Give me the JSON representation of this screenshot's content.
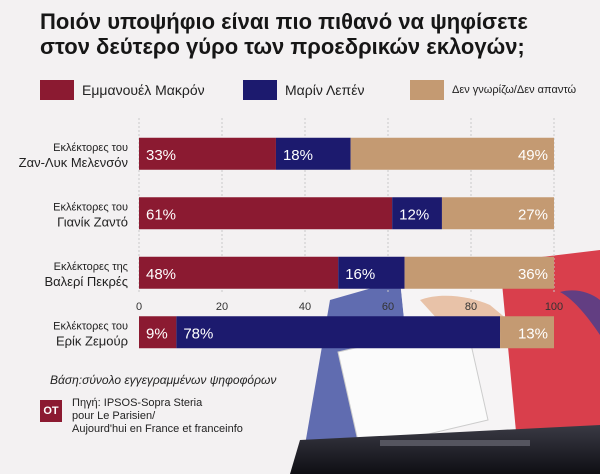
{
  "title_line1": "Ποιόν υποψήφιο είναι πιο πιθανό να ψηφίσετε",
  "title_line2": "στον δεύτερο γύρο των προεδρικών εκλογών;",
  "colors": {
    "macron": "#8b1a31",
    "lepen": "#1c1a6e",
    "dontknow": "#c49a72"
  },
  "chart_data": {
    "type": "bar",
    "orientation": "horizontal",
    "stacked": true,
    "categories": [
      [
        "Εκλέκτορες του",
        "Ζαν-Λυκ Μελενσόν"
      ],
      [
        "Εκλέκτορες του",
        "Γιανίκ Ζαντό"
      ],
      [
        "Εκλέκτορες της",
        "Βαλερί Πεκρές"
      ],
      [
        "Εκλέκτορες του",
        "Ερίκ Ζεμούρ"
      ]
    ],
    "series": [
      {
        "name": "Εμμανουέλ Μακρόν",
        "values": [
          33,
          61,
          48,
          9
        ],
        "color": "#8b1a31"
      },
      {
        "name": "Μαρίν Λεπέν",
        "values": [
          18,
          12,
          16,
          78
        ],
        "color": "#1c1a6e"
      },
      {
        "name": "Δεν γνωρίζω/Δεν απαντώ",
        "values": [
          49,
          27,
          36,
          13
        ],
        "color": "#c49a72"
      }
    ],
    "xlim": [
      0,
      100
    ],
    "xticks": [
      0,
      20,
      40,
      60,
      80,
      100
    ],
    "value_suffix": "%",
    "legend_position": "top"
  },
  "footer": {
    "basis": "Βάση:σύνολο εγγεγραμμένων ψηφοφόρων",
    "logo": "OT",
    "source_lines": [
      "Πηγή: IPSOS-Sopra Steria",
      "pour Le Parisien/",
      "Aujourd'hui en France et franceinfo"
    ]
  }
}
